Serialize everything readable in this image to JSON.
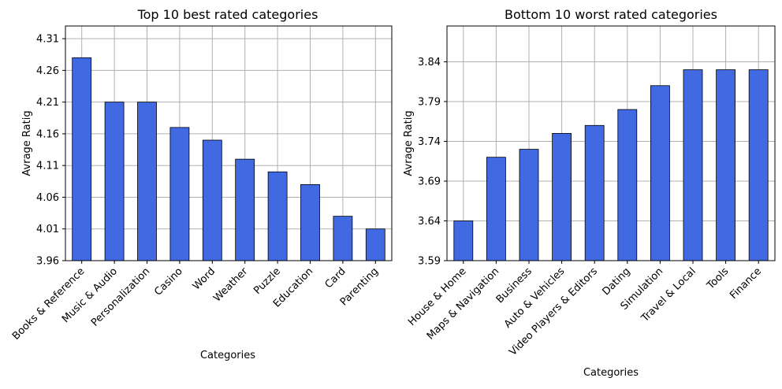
{
  "chart_data": [
    {
      "type": "bar",
      "title": "Top 10 best rated categories",
      "xlabel": "Categories",
      "ylabel": "Avrage Ratig",
      "ylim": [
        3.96,
        4.33
      ],
      "yticks": [
        "3.96",
        "4.01",
        "4.06",
        "4.11",
        "4.16",
        "4.21",
        "4.26",
        "4.31"
      ],
      "grid": true,
      "bar_color": "#4169E1",
      "categories": [
        "Books & Reference",
        "Music & Audio",
        "Personalization",
        "Casino",
        "Word",
        "Weather",
        "Puzzle",
        "Education",
        "Card",
        "Parenting"
      ],
      "values": [
        4.28,
        4.21,
        4.21,
        4.17,
        4.15,
        4.12,
        4.1,
        4.08,
        4.03,
        4.01
      ]
    },
    {
      "type": "bar",
      "title": "Bottom 10 worst rated categories",
      "xlabel": "Categories",
      "ylabel": "Avrage Ratig",
      "ylim": [
        3.59,
        3.885
      ],
      "yticks": [
        "3.59",
        "3.64",
        "3.69",
        "3.74",
        "3.79",
        "3.84"
      ],
      "grid": true,
      "bar_color": "#4169E1",
      "categories": [
        "House & Home",
        "Maps & Navigation",
        "Business",
        "Auto & Vehicles",
        "Video Players & Editors",
        "Dating",
        "Simulation",
        "Travel & Local",
        "Tools",
        "Finance"
      ],
      "values": [
        3.64,
        3.72,
        3.73,
        3.75,
        3.76,
        3.78,
        3.81,
        3.83,
        3.83,
        3.83
      ]
    }
  ]
}
